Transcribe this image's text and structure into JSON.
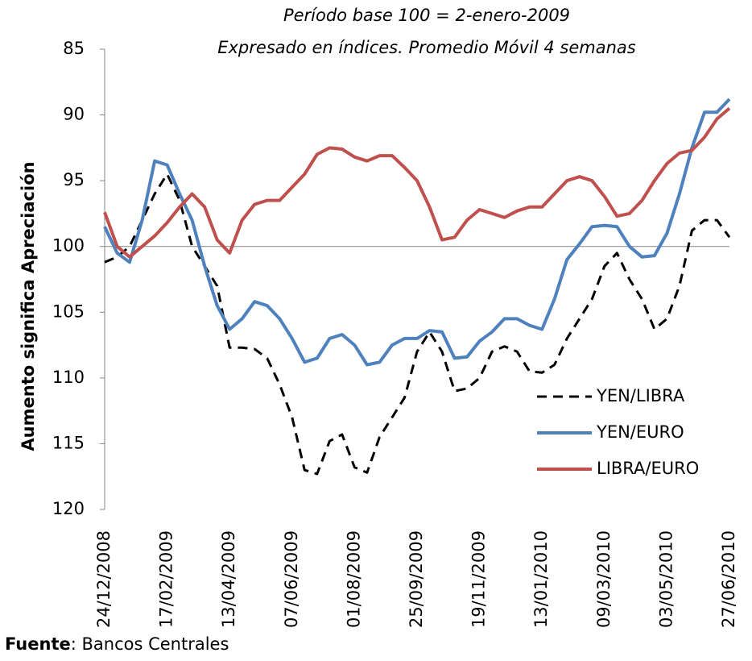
{
  "chart_data": {
    "type": "line",
    "title": [
      "Período base 100 = 2-enero-2009",
      "Expresado en índices. Promedio Móvil 4 semanas"
    ],
    "y_label": "Aumento significa Apreciación",
    "source": {
      "label": "Fuente",
      "text": ": Bancos Centrales"
    },
    "categories": [
      "24/12/2008",
      null,
      null,
      null,
      null,
      "17/02/2009",
      null,
      null,
      null,
      null,
      "13/04/2009",
      null,
      null,
      null,
      null,
      "07/06/2009",
      null,
      null,
      null,
      null,
      "01/08/2009",
      null,
      null,
      null,
      null,
      "25/09/2009",
      null,
      null,
      null,
      null,
      "19/11/2009",
      null,
      null,
      null,
      null,
      "13/01/2010",
      null,
      null,
      null,
      null,
      "09/03/2010",
      null,
      null,
      null,
      null,
      "03/05/2010",
      null,
      null,
      null,
      null,
      "27/06/2010"
    ],
    "ylim": [
      85,
      120
    ],
    "yticks": [
      85,
      90,
      95,
      100,
      105,
      110,
      115,
      120
    ],
    "y_inverted": true,
    "axis_cross": 100,
    "legend": "right",
    "series": [
      {
        "name": "YEN/LIBRA",
        "color": "#000000",
        "dash": true,
        "values": [
          101.2,
          100.8,
          100,
          98,
          96,
          94.5,
          96.5,
          100,
          101.5,
          103,
          107.7,
          107.7,
          107.8,
          108.5,
          110.5,
          113,
          117,
          117.3,
          114.8,
          114.3,
          116.8,
          117.2,
          114.5,
          113,
          111.5,
          108,
          106.5,
          108,
          111,
          110.8,
          110,
          108,
          107.6,
          108,
          109.5,
          109.6,
          109,
          107,
          105.5,
          104,
          101.5,
          100.5,
          102.5,
          104,
          106.3,
          105.5,
          103,
          98.8,
          98,
          98,
          99.3
        ]
      },
      {
        "name": "YEN/EURO",
        "color": "#4f81bd",
        "dash": false,
        "values": [
          98.5,
          100.5,
          101.2,
          98,
          93.5,
          93.8,
          96,
          98,
          101.5,
          104.5,
          106.3,
          105.5,
          104.2,
          104.5,
          105.5,
          107,
          108.8,
          108.5,
          107,
          106.7,
          107.5,
          109,
          108.8,
          107.5,
          107,
          107,
          106.4,
          106.5,
          108.5,
          108.4,
          107.2,
          106.5,
          105.5,
          105.5,
          106,
          106.3,
          104,
          101,
          99.8,
          98.5,
          98.4,
          98.5,
          100,
          100.8,
          100.7,
          99,
          96,
          92.5,
          89.8,
          89.8,
          88.8
        ]
      },
      {
        "name": "LIBRA/EURO",
        "color": "#c0504d",
        "dash": false,
        "values": [
          97.4,
          100,
          100.8,
          100,
          99.2,
          98.2,
          97,
          96,
          97,
          99.5,
          100.5,
          98,
          96.8,
          96.5,
          96.5,
          95.5,
          94.5,
          93,
          92.5,
          92.6,
          93.2,
          93.5,
          93.1,
          93.1,
          94,
          95,
          97,
          99.5,
          99.3,
          98,
          97.2,
          97.5,
          97.8,
          97.3,
          97,
          97,
          96,
          95,
          94.7,
          95,
          96.2,
          97.7,
          97.5,
          96.5,
          95,
          93.7,
          92.9,
          92.7,
          91.7,
          90.3,
          89.5
        ]
      }
    ]
  }
}
